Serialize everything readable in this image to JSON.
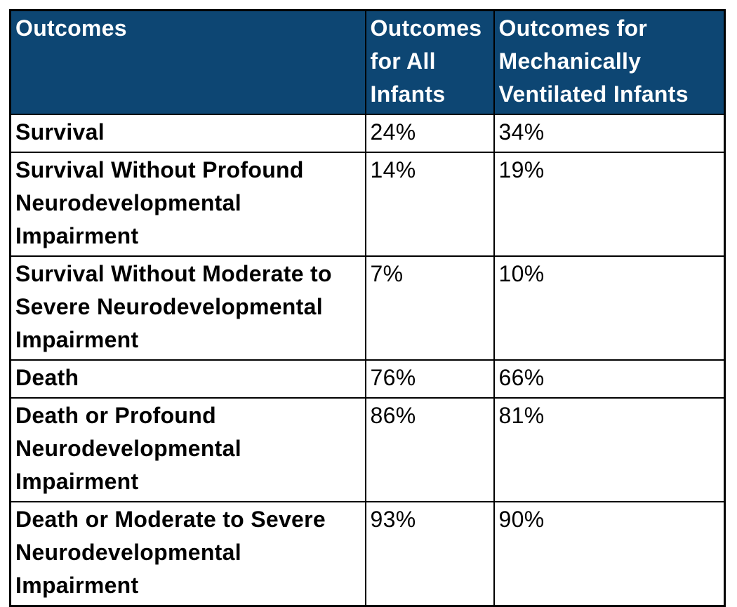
{
  "chart_data": {
    "type": "table",
    "title": "",
    "columns": [
      "Outcomes",
      "Outcomes for All Infants",
      "Outcomes for Mechanically Ventilated Infants"
    ],
    "rows": [
      [
        "Survival",
        "24%",
        "34%"
      ],
      [
        "Survival Without Profound Neurodevelopmental Impairment",
        "14%",
        "19%"
      ],
      [
        "Survival Without Moderate to Severe Neurodevelopmental Impairment",
        "7%",
        "10%"
      ],
      [
        "Death",
        "76%",
        "66%"
      ],
      [
        "Death or Profound Neurodevelopmental Impairment",
        "86%",
        "81%"
      ],
      [
        "Death or Moderate to Severe Neurodevelopmental Impairment",
        "93%",
        "90%"
      ]
    ],
    "series": [
      {
        "name": "Outcomes for All Infants",
        "values": [
          24,
          14,
          7,
          76,
          86,
          93
        ]
      },
      {
        "name": "Outcomes for Mechanically Ventilated Infants",
        "values": [
          34,
          19,
          10,
          66,
          81,
          90
        ]
      }
    ],
    "value_unit": "%"
  },
  "table": {
    "header": {
      "outcomes": "Outcomes",
      "all_infants": "Outcomes\nfor All\nInfants",
      "ventilated_infants": "Outcomes for\nMechanically\nVentilated Infants"
    },
    "rows": [
      {
        "outcome": "Survival",
        "all": "24%",
        "vent": "34%"
      },
      {
        "outcome": "Survival Without Profound\nNeurodevelopmental\nImpairment",
        "all": "14%",
        "vent": "19%"
      },
      {
        "outcome": "Survival Without Moderate to\nSevere Neurodevelopmental\nImpairment",
        "all": "7%",
        "vent": "10%"
      },
      {
        "outcome": "Death",
        "all": "76%",
        "vent": "66%"
      },
      {
        "outcome": "Death or Profound\nNeurodevelopmental\nImpairment",
        "all": "86%",
        "vent": "81%"
      },
      {
        "outcome": "Death or Moderate to Severe\nNeurodevelopmental\nImpairment",
        "all": "93%",
        "vent": "90%"
      }
    ]
  },
  "colors": {
    "header_bg": "#0d4673",
    "header_text": "#ffffff",
    "border": "#000000",
    "body_bg": "#ffffff",
    "body_text": "#000000"
  }
}
